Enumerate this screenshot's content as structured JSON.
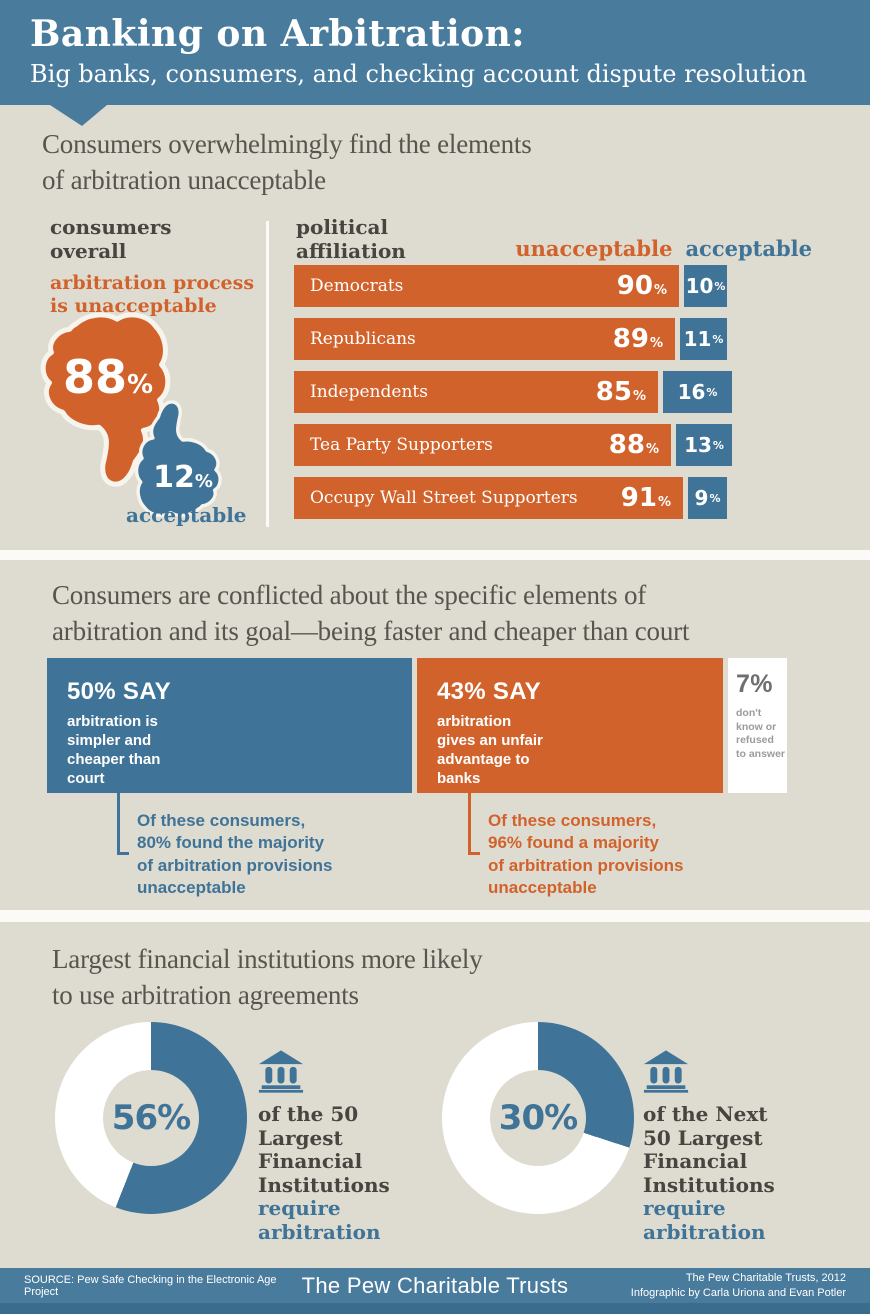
{
  "colors": {
    "header_blue": "#497b9d",
    "blue": "#3f7397",
    "orange": "#d2622b",
    "beige": "#dedcd1",
    "gap": "#fbfaf6",
    "heading": "#56554e",
    "dark": "#47453f",
    "strip": "#3a6d8d"
  },
  "header": {
    "title": "Banking on Arbitration:",
    "subtitle": "Big banks, consumers, and checking account dispute resolution"
  },
  "section1": {
    "heading": "Consumers overwhelmingly find the elements\nof arbitration unacceptable",
    "left_column_label": "consumers\noverall",
    "right_column_label": "political\naffiliation",
    "overall_unacceptable_label": "arbitration process\nis unacceptable",
    "overall_unacceptable_value": "88",
    "overall_acceptable_value": "12",
    "overall_acceptable_label": "acceptable",
    "percent": "%",
    "legend_unacceptable": "unacceptable",
    "legend_acceptable": "acceptable",
    "bars": [
      {
        "label": "Democrats",
        "unacceptable": 90,
        "acceptable": 10
      },
      {
        "label": "Republicans",
        "unacceptable": 89,
        "acceptable": 11
      },
      {
        "label": "Independents",
        "unacceptable": 85,
        "acceptable": 16
      },
      {
        "label": "Tea Party Supporters",
        "unacceptable": 88,
        "acceptable": 13
      },
      {
        "label": "Occupy Wall Street Supporters",
        "unacceptable": 91,
        "acceptable": 9
      }
    ]
  },
  "section2": {
    "heading": "Consumers are conflicted about the specific elements of\narbitration and its goal—being faster and cheaper than court",
    "boxes": [
      {
        "title": "50% SAY",
        "body": "arbitration is\nsimpler and\ncheaper than\ncourt"
      },
      {
        "title": "43% SAY",
        "body": "arbitration\ngives an unfair\nadvantage to\nbanks"
      },
      {
        "title": "7%",
        "body": "don't\nknow or\nrefused\nto answer"
      }
    ],
    "notes": [
      {
        "intro": "Of these consumers,\n",
        "stat": "80%",
        "rest": " found the majority\nof arbitration provisions\nunacceptable"
      },
      {
        "intro": "Of these consumers,\n",
        "stat": "96%",
        "rest": " found a majority\nof arbitration provisions\nunacceptable"
      }
    ]
  },
  "section3": {
    "heading": "Largest financial institutions more likely\nto use arbitration agreements",
    "donuts": [
      {
        "value": 56,
        "label": "56%",
        "caption": "of the 50\nLargest\nFinancial\nInstitutions",
        "highlight": "require\narbitration"
      },
      {
        "value": 30,
        "label": "30%",
        "caption": "of the Next\n50 Largest\nFinancial\nInstitutions",
        "highlight": "require\narbitration"
      }
    ]
  },
  "footer": {
    "source": "SOURCE: Pew Safe Checking in the Electronic Age Project",
    "brand": "The Pew Charitable Trusts",
    "credit": "The Pew Charitable Trusts, 2012\nInfographic by Carla Uriona and Evan Potler"
  },
  "chart_data": [
    {
      "type": "bar",
      "orientation": "horizontal",
      "title": "Consumers overwhelmingly find the elements of arbitration unacceptable — political affiliation",
      "categories": [
        "Democrats",
        "Republicans",
        "Independents",
        "Tea Party Supporters",
        "Occupy Wall Street Supporters"
      ],
      "series": [
        {
          "name": "unacceptable",
          "color": "#d2622b",
          "values": [
            90,
            89,
            85,
            88,
            91
          ]
        },
        {
          "name": "acceptable",
          "color": "#3f7397",
          "values": [
            10,
            11,
            16,
            13,
            9
          ]
        }
      ],
      "unit": "%",
      "xlim": [
        0,
        100
      ],
      "legend_position": "top-right",
      "grid": false
    },
    {
      "type": "pie",
      "title": "consumers overall — arbitration process",
      "labels": [
        "arbitration process is unacceptable",
        "acceptable"
      ],
      "values": [
        88,
        12
      ],
      "colors": [
        "#d2622b",
        "#3f7397"
      ],
      "unit": "%"
    },
    {
      "type": "bar",
      "orientation": "horizontal-stacked",
      "title": "Consumers are conflicted about the specific elements of arbitration and its goal—being faster and cheaper than court",
      "categories": [
        "arbitration is simpler and cheaper than court",
        "arbitration gives an unfair advantage to banks",
        "don't know or refused to answer"
      ],
      "values": [
        50,
        43,
        7
      ],
      "colors": [
        "#3f7397",
        "#d2622b",
        "#ffffff"
      ],
      "unit": "%",
      "annotations": [
        "Of these consumers, 80% found the majority of arbitration provisions unacceptable",
        "Of these consumers, 96% found a majority of arbitration provisions unacceptable"
      ]
    },
    {
      "type": "pie",
      "title": "of the 50 Largest Financial Institutions require arbitration",
      "labels": [
        "require arbitration",
        "do not require arbitration"
      ],
      "values": [
        56,
        44
      ],
      "colors": [
        "#3f7397",
        "#ffffff"
      ],
      "unit": "%"
    },
    {
      "type": "pie",
      "title": "of the Next 50 Largest Financial Institutions require arbitration",
      "labels": [
        "require arbitration",
        "do not require arbitration"
      ],
      "values": [
        30,
        70
      ],
      "colors": [
        "#3f7397",
        "#ffffff"
      ],
      "unit": "%"
    }
  ]
}
